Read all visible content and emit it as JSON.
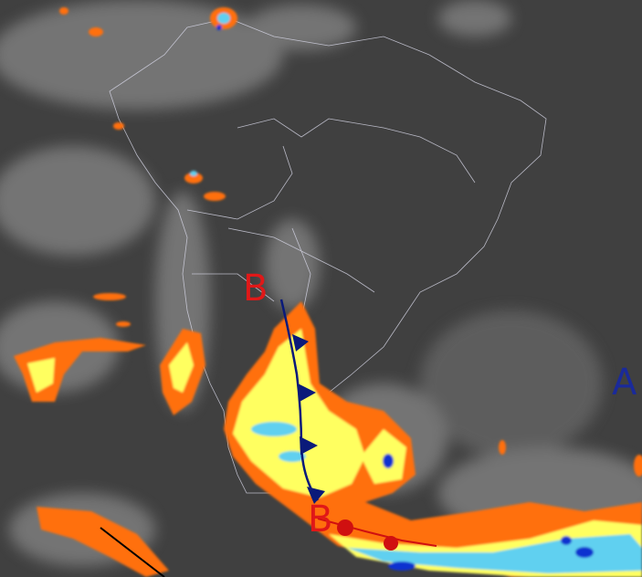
{
  "map": {
    "labels": [
      {
        "text": "B",
        "kind": "low-pressure",
        "color": "#e01818"
      },
      {
        "text": "B",
        "kind": "low-pressure",
        "color": "#e01818"
      },
      {
        "text": "A",
        "kind": "high-pressure",
        "color": "#1a2a9a"
      }
    ],
    "fronts": [
      {
        "type": "cold-front",
        "color": "#0a1a7a"
      },
      {
        "type": "warm-front",
        "color": "#d01010"
      }
    ],
    "cloud_top_colors": [
      "#ff7010",
      "#ffff60",
      "#60d0f0",
      "#1030d0"
    ]
  }
}
